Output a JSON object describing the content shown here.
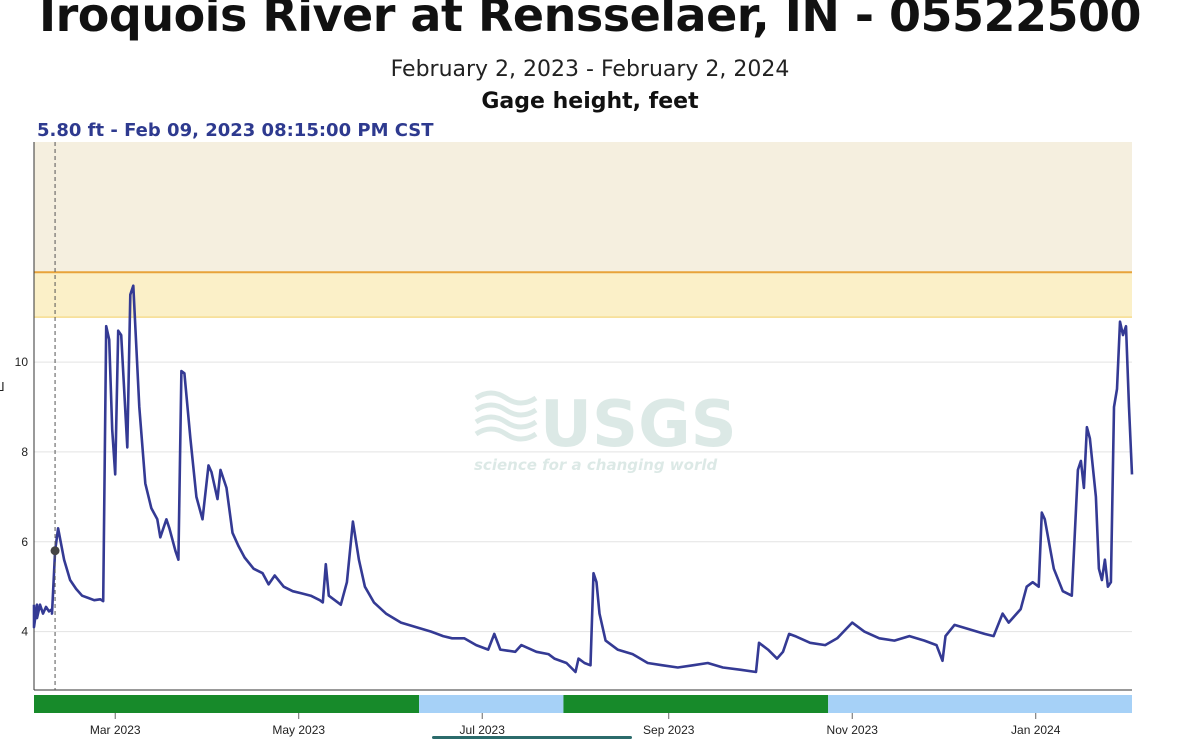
{
  "chart_data": {
    "type": "line",
    "title": "Iroquois River at Rensselaer, IN - 05522500",
    "subtitle": "February 2, 2023 - February 2, 2024",
    "parameter": "Gage height, feet",
    "hover_readout": "5.80 ft - Feb 09, 2023 08:15:00 PM CST",
    "hover_point": {
      "x": "2023-02-09",
      "y": 5.8
    },
    "xlim": [
      "2023-02-02",
      "2024-02-02"
    ],
    "ylim": [
      2.7,
      14.9
    ],
    "y_ticks": [
      "4",
      "6",
      "8",
      "10"
    ],
    "x_ticks": [
      "Mar 2023",
      "May 2023",
      "Jul 2023",
      "Sep 2023",
      "Nov 2023",
      "Jan 2024"
    ],
    "grid": true,
    "threshold_bands": [
      {
        "from": 11.0,
        "to": 14.9,
        "color": "#f5efdf"
      },
      {
        "from": 11.0,
        "to": 12.0,
        "color": "#fbf0c8"
      }
    ],
    "threshold_line": {
      "y": 12.0,
      "color": "#e8a33a"
    },
    "series": [
      {
        "color": "#343a94",
        "points": [
          [
            "2023-02-02",
            4.6
          ],
          [
            "2023-02-02",
            4.1
          ],
          [
            "2023-02-03",
            4.6
          ],
          [
            "2023-02-03",
            4.3
          ],
          [
            "2023-02-04",
            4.6
          ],
          [
            "2023-02-05",
            4.4
          ],
          [
            "2023-02-06",
            4.55
          ],
          [
            "2023-02-07",
            4.45
          ],
          [
            "2023-02-08",
            4.5
          ],
          [
            "2023-02-08",
            4.4
          ],
          [
            "2023-02-09",
            5.8
          ],
          [
            "2023-02-10",
            6.3
          ],
          [
            "2023-02-12",
            5.6
          ],
          [
            "2023-02-14",
            5.15
          ],
          [
            "2023-02-16",
            4.95
          ],
          [
            "2023-02-18",
            4.8
          ],
          [
            "2023-02-20",
            4.75
          ],
          [
            "2023-02-22",
            4.7
          ],
          [
            "2023-02-24",
            4.72
          ],
          [
            "2023-02-25",
            4.68
          ],
          [
            "2023-02-26",
            10.8
          ],
          [
            "2023-02-27",
            10.5
          ],
          [
            "2023-02-28",
            8.5
          ],
          [
            "2023-03-01",
            7.5
          ],
          [
            "2023-03-02",
            10.7
          ],
          [
            "2023-03-03",
            10.6
          ],
          [
            "2023-03-05",
            8.1
          ],
          [
            "2023-03-06",
            11.5
          ],
          [
            "2023-03-07",
            11.7
          ],
          [
            "2023-03-09",
            9.0
          ],
          [
            "2023-03-11",
            7.3
          ],
          [
            "2023-03-13",
            6.75
          ],
          [
            "2023-03-15",
            6.5
          ],
          [
            "2023-03-16",
            6.1
          ],
          [
            "2023-03-18",
            6.5
          ],
          [
            "2023-03-19",
            6.3
          ],
          [
            "2023-03-21",
            5.8
          ],
          [
            "2023-03-22",
            5.6
          ],
          [
            "2023-03-23",
            9.8
          ],
          [
            "2023-03-24",
            9.75
          ],
          [
            "2023-03-26",
            8.3
          ],
          [
            "2023-03-28",
            7.0
          ],
          [
            "2023-03-30",
            6.5
          ],
          [
            "2023-04-01",
            7.7
          ],
          [
            "2023-04-02",
            7.55
          ],
          [
            "2023-04-04",
            6.95
          ],
          [
            "2023-04-05",
            7.6
          ],
          [
            "2023-04-07",
            7.2
          ],
          [
            "2023-04-09",
            6.2
          ],
          [
            "2023-04-11",
            5.9
          ],
          [
            "2023-04-13",
            5.65
          ],
          [
            "2023-04-16",
            5.4
          ],
          [
            "2023-04-19",
            5.3
          ],
          [
            "2023-04-21",
            5.05
          ],
          [
            "2023-04-23",
            5.25
          ],
          [
            "2023-04-26",
            5.0
          ],
          [
            "2023-04-29",
            4.9
          ],
          [
            "2023-05-02",
            4.85
          ],
          [
            "2023-05-05",
            4.8
          ],
          [
            "2023-05-08",
            4.7
          ],
          [
            "2023-05-09",
            4.65
          ],
          [
            "2023-05-10",
            5.5
          ],
          [
            "2023-05-11",
            4.8
          ],
          [
            "2023-05-13",
            4.7
          ],
          [
            "2023-05-15",
            4.6
          ],
          [
            "2023-05-17",
            5.1
          ],
          [
            "2023-05-19",
            6.45
          ],
          [
            "2023-05-21",
            5.6
          ],
          [
            "2023-05-23",
            5.0
          ],
          [
            "2023-05-26",
            4.65
          ],
          [
            "2023-05-30",
            4.4
          ],
          [
            "2023-06-04",
            4.2
          ],
          [
            "2023-06-09",
            4.1
          ],
          [
            "2023-06-14",
            4.0
          ],
          [
            "2023-06-18",
            3.9
          ],
          [
            "2023-06-21",
            3.85
          ],
          [
            "2023-06-25",
            3.85
          ],
          [
            "2023-06-29",
            3.7
          ],
          [
            "2023-07-03",
            3.6
          ],
          [
            "2023-07-05",
            3.95
          ],
          [
            "2023-07-07",
            3.6
          ],
          [
            "2023-07-12",
            3.55
          ],
          [
            "2023-07-14",
            3.7
          ],
          [
            "2023-07-19",
            3.55
          ],
          [
            "2023-07-23",
            3.5
          ],
          [
            "2023-07-25",
            3.4
          ],
          [
            "2023-07-29",
            3.3
          ],
          [
            "2023-08-01",
            3.1
          ],
          [
            "2023-08-02",
            3.4
          ],
          [
            "2023-08-04",
            3.3
          ],
          [
            "2023-08-06",
            3.25
          ],
          [
            "2023-08-07",
            5.3
          ],
          [
            "2023-08-08",
            5.1
          ],
          [
            "2023-08-09",
            4.4
          ],
          [
            "2023-08-11",
            3.8
          ],
          [
            "2023-08-15",
            3.6
          ],
          [
            "2023-08-20",
            3.5
          ],
          [
            "2023-08-25",
            3.3
          ],
          [
            "2023-08-30",
            3.25
          ],
          [
            "2023-09-04",
            3.2
          ],
          [
            "2023-09-09",
            3.25
          ],
          [
            "2023-09-14",
            3.3
          ],
          [
            "2023-09-19",
            3.2
          ],
          [
            "2023-09-25",
            3.15
          ],
          [
            "2023-09-30",
            3.1
          ],
          [
            "2023-10-01",
            3.75
          ],
          [
            "2023-10-04",
            3.6
          ],
          [
            "2023-10-07",
            3.4
          ],
          [
            "2023-10-09",
            3.55
          ],
          [
            "2023-10-11",
            3.95
          ],
          [
            "2023-10-13",
            3.9
          ],
          [
            "2023-10-18",
            3.75
          ],
          [
            "2023-10-23",
            3.7
          ],
          [
            "2023-10-27",
            3.85
          ],
          [
            "2023-11-01",
            4.2
          ],
          [
            "2023-11-05",
            4.0
          ],
          [
            "2023-11-10",
            3.85
          ],
          [
            "2023-11-15",
            3.8
          ],
          [
            "2023-11-20",
            3.9
          ],
          [
            "2023-11-25",
            3.8
          ],
          [
            "2023-11-29",
            3.7
          ],
          [
            "2023-12-01",
            3.35
          ],
          [
            "2023-12-02",
            3.9
          ],
          [
            "2023-12-05",
            4.15
          ],
          [
            "2023-12-10",
            4.05
          ],
          [
            "2023-12-15",
            3.95
          ],
          [
            "2023-12-18",
            3.9
          ],
          [
            "2023-12-21",
            4.4
          ],
          [
            "2023-12-23",
            4.2
          ],
          [
            "2023-12-27",
            4.5
          ],
          [
            "2023-12-29",
            5.0
          ],
          [
            "2023-12-31",
            5.1
          ],
          [
            "2024-01-02",
            5.0
          ],
          [
            "2024-01-03",
            6.65
          ],
          [
            "2024-01-04",
            6.5
          ],
          [
            "2024-01-07",
            5.4
          ],
          [
            "2024-01-10",
            4.9
          ],
          [
            "2024-01-13",
            4.8
          ],
          [
            "2024-01-15",
            7.6
          ],
          [
            "2024-01-16",
            7.8
          ],
          [
            "2024-01-17",
            7.2
          ],
          [
            "2024-01-18",
            8.55
          ],
          [
            "2024-01-19",
            8.3
          ],
          [
            "2024-01-21",
            7.0
          ],
          [
            "2024-01-22",
            5.4
          ],
          [
            "2024-01-23",
            5.15
          ],
          [
            "2024-01-24",
            5.6
          ],
          [
            "2024-01-25",
            5.0
          ],
          [
            "2024-01-26",
            5.1
          ],
          [
            "2024-01-27",
            9.0
          ],
          [
            "2024-01-28",
            9.4
          ],
          [
            "2024-01-29",
            10.9
          ],
          [
            "2024-01-30",
            10.6
          ],
          [
            "2024-01-31",
            10.8
          ],
          [
            "2024-02-01",
            9.0
          ],
          [
            "2024-02-02",
            7.5
          ]
        ]
      }
    ],
    "qualifier_bar": [
      {
        "from": "2023-02-02",
        "to": "2023-06-10",
        "color": "#178a2a"
      },
      {
        "from": "2023-06-10",
        "to": "2023-07-28",
        "color": "#a6d1f7"
      },
      {
        "from": "2023-07-28",
        "to": "2023-10-24",
        "color": "#178a2a"
      },
      {
        "from": "2023-10-24",
        "to": "2024-02-02",
        "color": "#a6d1f7"
      }
    ],
    "watermark": {
      "logo": "USGS",
      "tagline": "science for a changing world"
    }
  }
}
